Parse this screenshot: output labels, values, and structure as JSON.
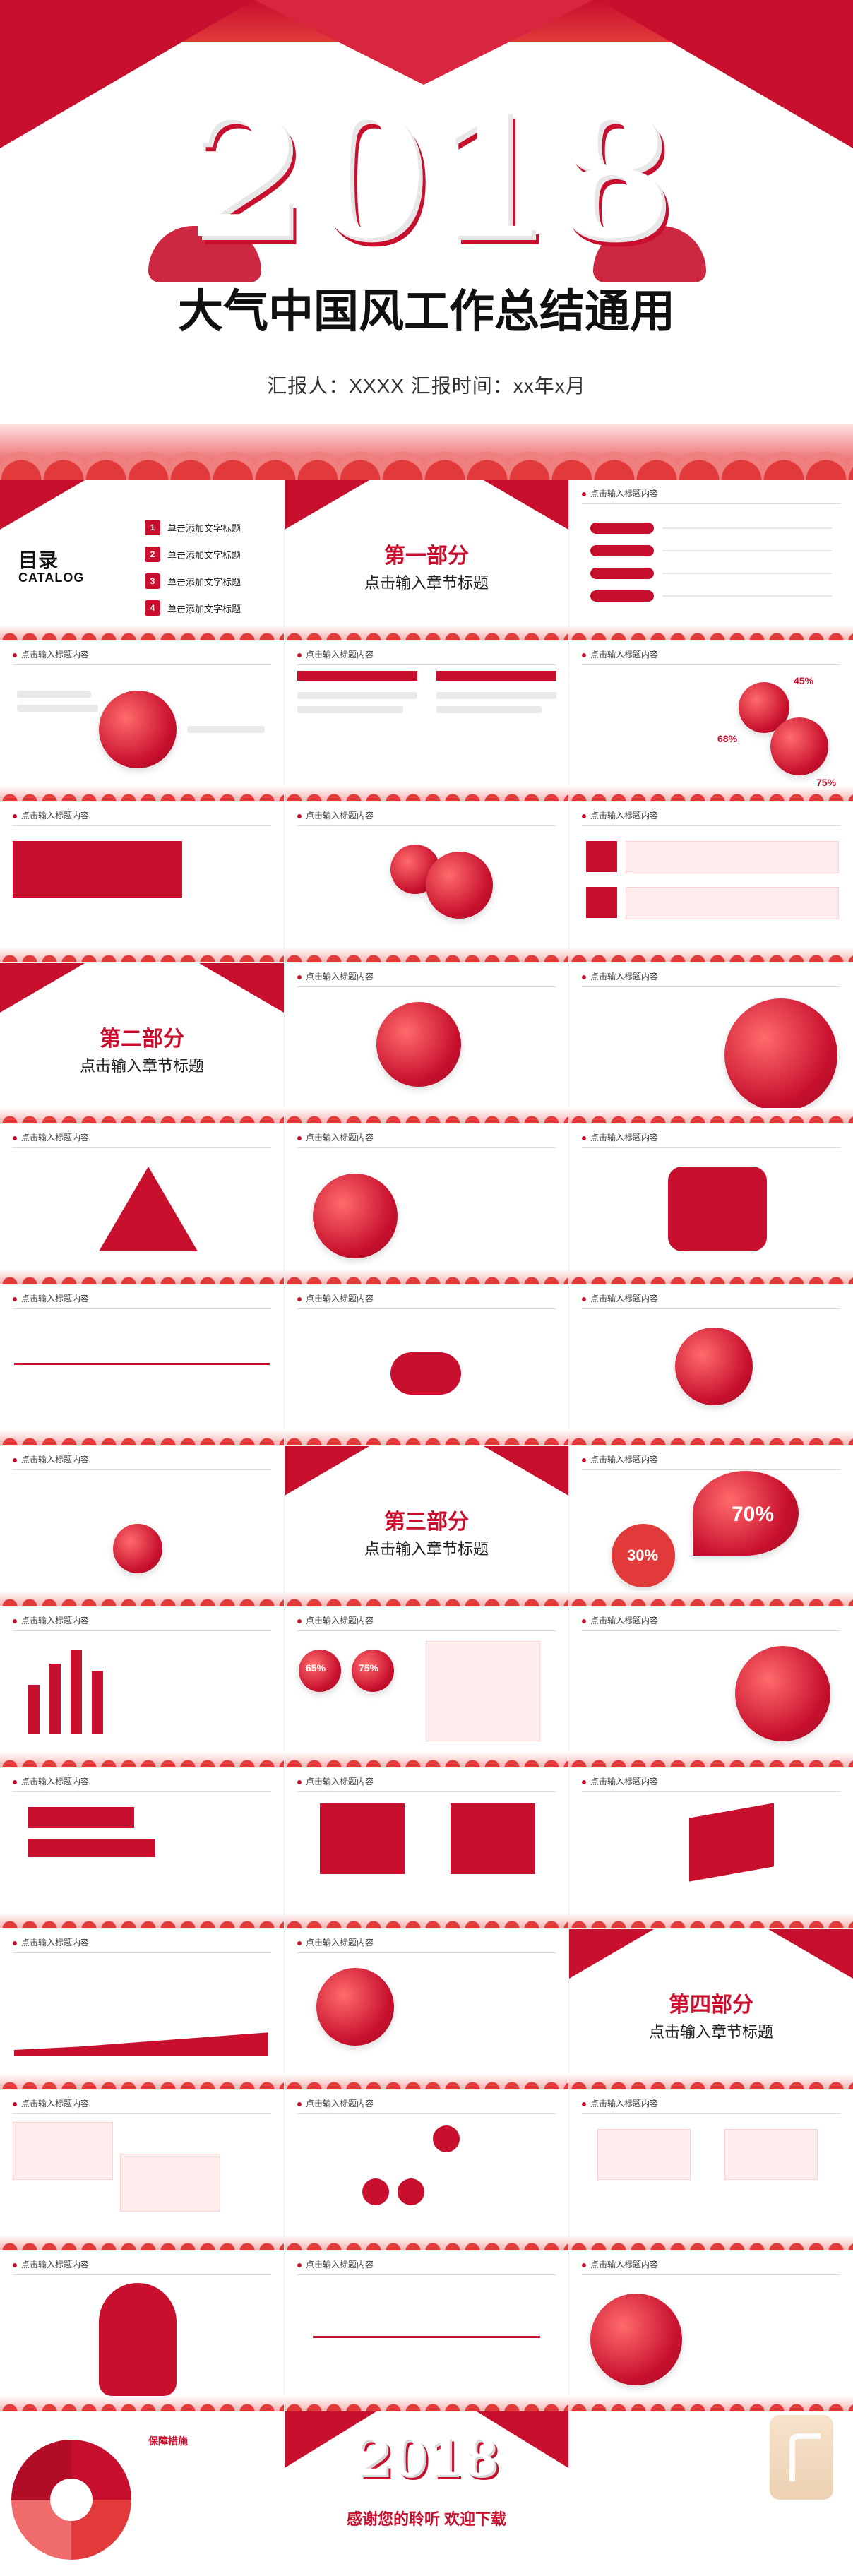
{
  "hero": {
    "year": "2018",
    "title": "大气中国风工作总结通用",
    "reporter_line": "汇报人：XXXX     汇报时间：xx年x月"
  },
  "catalog": {
    "title": "目录",
    "subtitle": "CATALOG",
    "items": [
      {
        "num": "1",
        "label": "单击添加文字标题"
      },
      {
        "num": "2",
        "label": "单击添加文字标题"
      },
      {
        "num": "3",
        "label": "单击添加文字标题"
      },
      {
        "num": "4",
        "label": "单击添加文字标题"
      }
    ]
  },
  "sections": [
    {
      "title": "第一部分",
      "subtitle": "点击输入章节标题"
    },
    {
      "title": "第二部分",
      "subtitle": "点击输入章节标题"
    },
    {
      "title": "第三部分",
      "subtitle": "点击输入章节标题"
    },
    {
      "title": "第四部分",
      "subtitle": "点击输入章节标题"
    }
  ],
  "generic_header": "点击输入标题内容",
  "thankyou": {
    "year": "2018",
    "message": "感谢您的聆听 欢迎下载"
  },
  "final_left": {
    "label": "保障措施"
  },
  "percent_labels": {
    "p45": "45%",
    "p68": "68%",
    "p75": "75%",
    "p70": "70%",
    "p30": "30%",
    "p65": "65%",
    "p75b": "75%"
  }
}
